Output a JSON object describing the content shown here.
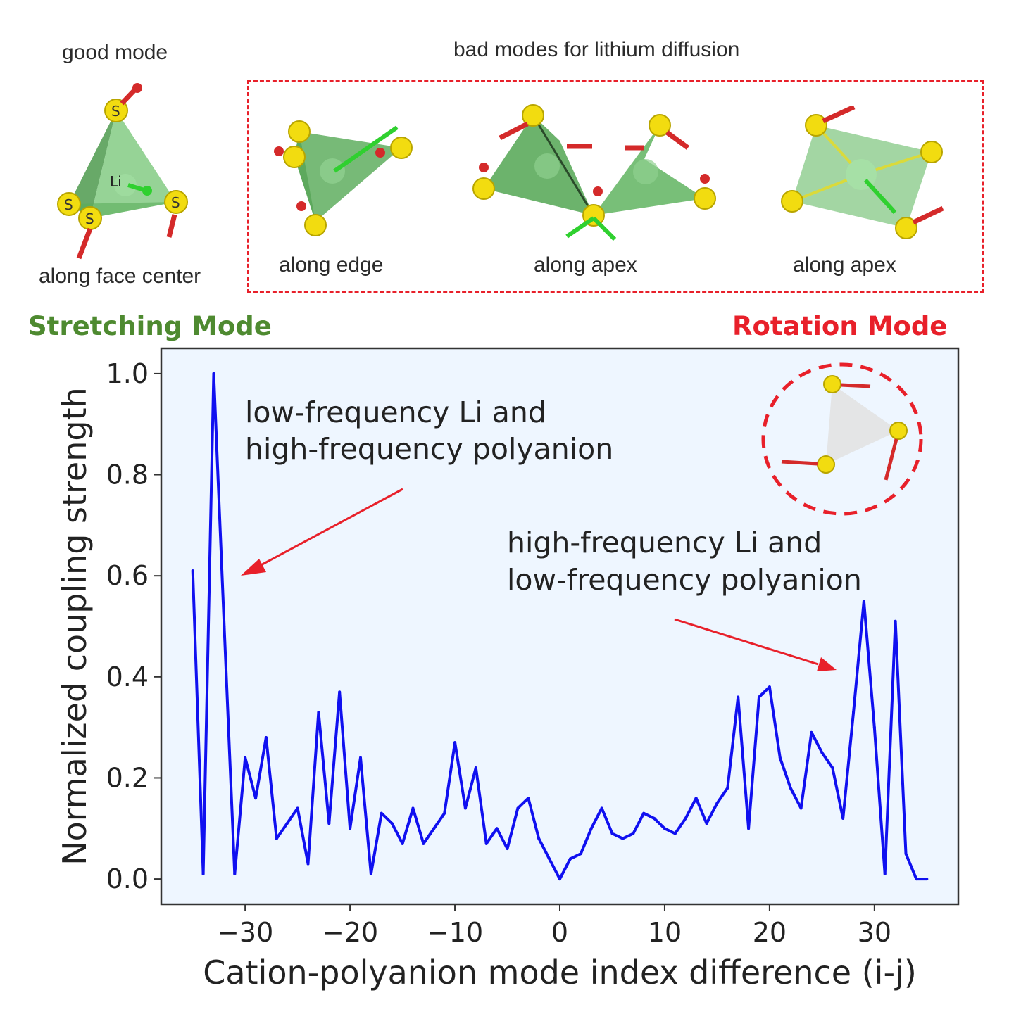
{
  "top_panel": {
    "good_mode_title": "good mode",
    "good_mode_caption": "along face center",
    "bad_modes_title": "bad modes for lithium diffusion",
    "bad_mode_captions": [
      "along edge",
      "along apex",
      "along apex"
    ],
    "atom_labels": {
      "sulfur": "S",
      "lithium": "Li"
    }
  },
  "mode_labels": {
    "stretching": "Stretching Mode",
    "rotation": "Rotation Mode"
  },
  "colors": {
    "line": "#1010f0",
    "plot_bg": "#eef6ff",
    "stretching": "#4e8a30",
    "rotation": "#e8202a",
    "tetra": "#5fb85f",
    "atom": "#f2dc10",
    "arrow_red": "#d42a2a",
    "arrow_green": "#2fd02f"
  },
  "chart_data": {
    "type": "line",
    "xlabel": "Cation-polyanion mode index difference (i-j)",
    "ylabel": "Normalized coupling strength",
    "xlim": [
      -38,
      38
    ],
    "ylim": [
      -0.05,
      1.05
    ],
    "xticks": [
      -30,
      -20,
      -10,
      0,
      10,
      20,
      30
    ],
    "yticks": [
      0.0,
      0.2,
      0.4,
      0.6,
      0.8,
      1.0
    ],
    "xtick_labels": [
      "−30",
      "−20",
      "−10",
      "0",
      "10",
      "20",
      "30"
    ],
    "ytick_labels": [
      "0.0",
      "0.2",
      "0.4",
      "0.6",
      "0.8",
      "1.0"
    ],
    "grid": false,
    "x": [
      -35,
      -34,
      -33,
      -32,
      -31,
      -30,
      -29,
      -28,
      -27,
      -26,
      -25,
      -24,
      -23,
      -22,
      -21,
      -20,
      -19,
      -18,
      -17,
      -16,
      -15,
      -14,
      -13,
      -12,
      -11,
      -10,
      -9,
      -8,
      -7,
      -6,
      -5,
      -4,
      -3,
      -2,
      -1,
      0,
      1,
      2,
      3,
      4,
      5,
      6,
      7,
      8,
      9,
      10,
      11,
      12,
      13,
      14,
      15,
      16,
      17,
      18,
      19,
      20,
      21,
      22,
      23,
      24,
      25,
      26,
      27,
      28,
      29,
      30,
      31,
      32,
      33,
      34,
      35
    ],
    "y": [
      0.61,
      0.01,
      1.0,
      0.5,
      0.01,
      0.24,
      0.16,
      0.28,
      0.08,
      0.11,
      0.14,
      0.03,
      0.33,
      0.11,
      0.37,
      0.1,
      0.24,
      0.01,
      0.13,
      0.11,
      0.07,
      0.14,
      0.07,
      0.1,
      0.13,
      0.27,
      0.14,
      0.22,
      0.07,
      0.1,
      0.06,
      0.14,
      0.16,
      0.08,
      0.04,
      0.0,
      0.04,
      0.05,
      0.1,
      0.14,
      0.09,
      0.08,
      0.09,
      0.13,
      0.12,
      0.1,
      0.09,
      0.12,
      0.16,
      0.11,
      0.15,
      0.18,
      0.36,
      0.1,
      0.36,
      0.38,
      0.24,
      0.18,
      0.14,
      0.29,
      0.25,
      0.22,
      0.12,
      0.33,
      0.55,
      0.3,
      0.01,
      0.51,
      0.05,
      0.0,
      0.0
    ],
    "annotations": [
      {
        "lines": [
          "low-frequency Li and",
          "high-frequency polyanion"
        ]
      },
      {
        "lines": [
          "high-frequency Li and",
          "low-frequency polyanion"
        ]
      }
    ]
  }
}
